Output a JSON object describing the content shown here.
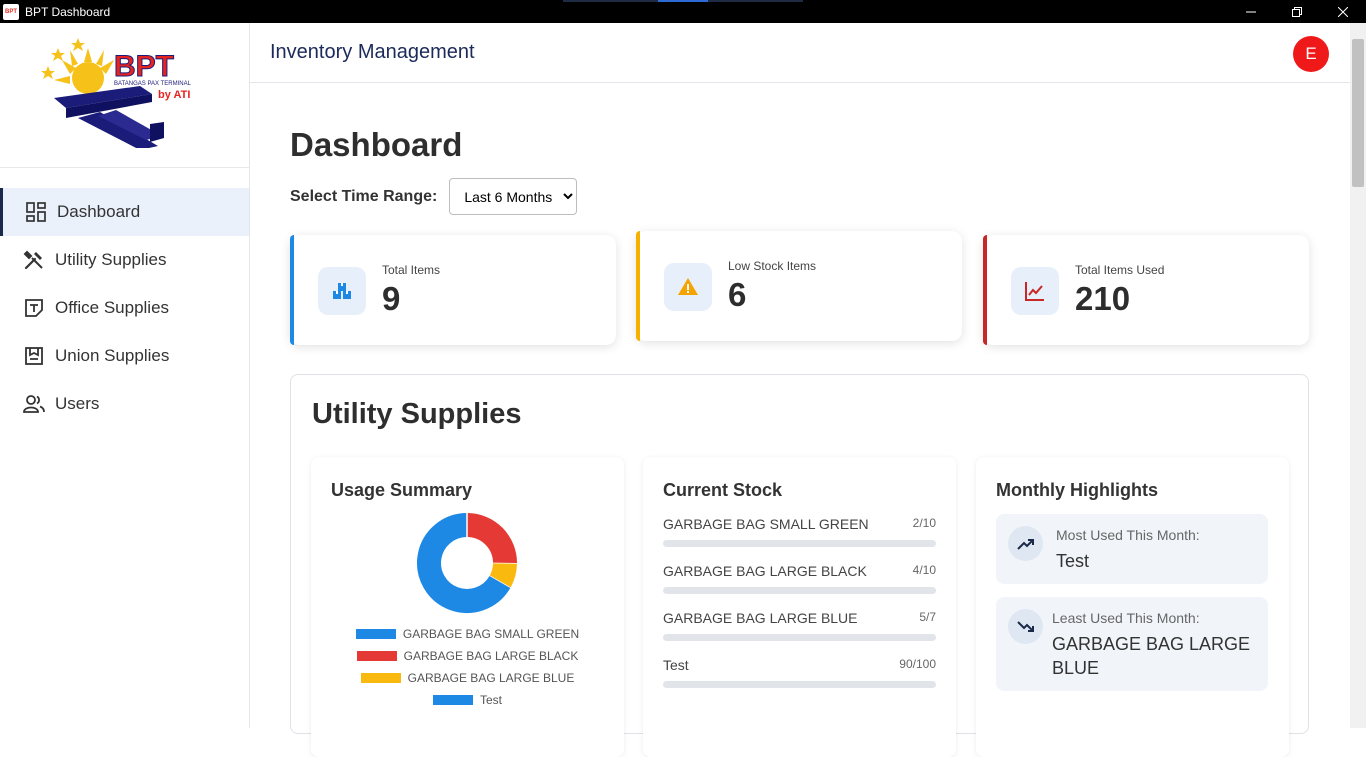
{
  "window": {
    "title": "BPT Dashboard",
    "icon_label": "BPT"
  },
  "logo": {
    "brand": "BPT",
    "subtitle": "BATANGAS PAX TERMINAL",
    "tagline": "by ATI"
  },
  "sidebar": {
    "items": [
      {
        "label": "Dashboard",
        "icon": "dashboard-icon",
        "active": true
      },
      {
        "label": "Utility Supplies",
        "icon": "tools-icon"
      },
      {
        "label": "Office Supplies",
        "icon": "office-icon"
      },
      {
        "label": "Union Supplies",
        "icon": "union-icon"
      },
      {
        "label": "Users",
        "icon": "users-icon"
      }
    ]
  },
  "header": {
    "title": "Inventory Management",
    "avatar_initial": "E"
  },
  "page": {
    "title": "Dashboard",
    "time_range_label": "Select Time Range:",
    "time_range_value": "Last 6 Months"
  },
  "stats": [
    {
      "label": "Total Items",
      "value": "9",
      "color": "#1e88e5",
      "icon": "boxes-icon"
    },
    {
      "label": "Low Stock Items",
      "value": "6",
      "color": "#f5b000",
      "icon": "warning-icon"
    },
    {
      "label": "Total Items Used",
      "value": "210",
      "color": "#c62828",
      "icon": "trend-chart-icon"
    }
  ],
  "utility": {
    "title": "Utility Supplies",
    "usage_title": "Usage Summary",
    "legend": [
      {
        "label": "GARBAGE BAG SMALL GREEN",
        "color": "#1e88e5"
      },
      {
        "label": "GARBAGE BAG LARGE BLACK",
        "color": "#e53935"
      },
      {
        "label": "GARBAGE BAG LARGE BLUE",
        "color": "#f9b90f"
      },
      {
        "label": "Test",
        "color": "#1e88e5"
      }
    ],
    "stock_title": "Current Stock",
    "stock": [
      {
        "name": "GARBAGE BAG SMALL GREEN",
        "count": "2/10"
      },
      {
        "name": "GARBAGE BAG LARGE BLACK",
        "count": "4/10"
      },
      {
        "name": "GARBAGE BAG LARGE BLUE",
        "count": "5/7"
      },
      {
        "name": "Test",
        "count": "90/100"
      }
    ],
    "highlights_title": "Monthly Highlights",
    "most_used_label": "Most Used This Month:",
    "most_used_value": "Test",
    "least_used_label": "Least Used This Month:",
    "least_used_value": "GARBAGE BAG LARGE BLUE"
  },
  "chart_data": {
    "type": "pie",
    "title": "Usage Summary",
    "categories": [
      "GARBAGE BAG SMALL GREEN",
      "GARBAGE BAG LARGE BLACK",
      "GARBAGE BAG LARGE BLUE",
      "Test"
    ],
    "values": [
      0,
      25,
      8,
      66
    ],
    "colors": [
      "#1e88e5",
      "#e53935",
      "#f9b90f",
      "#1e88e5"
    ],
    "donut": true
  }
}
